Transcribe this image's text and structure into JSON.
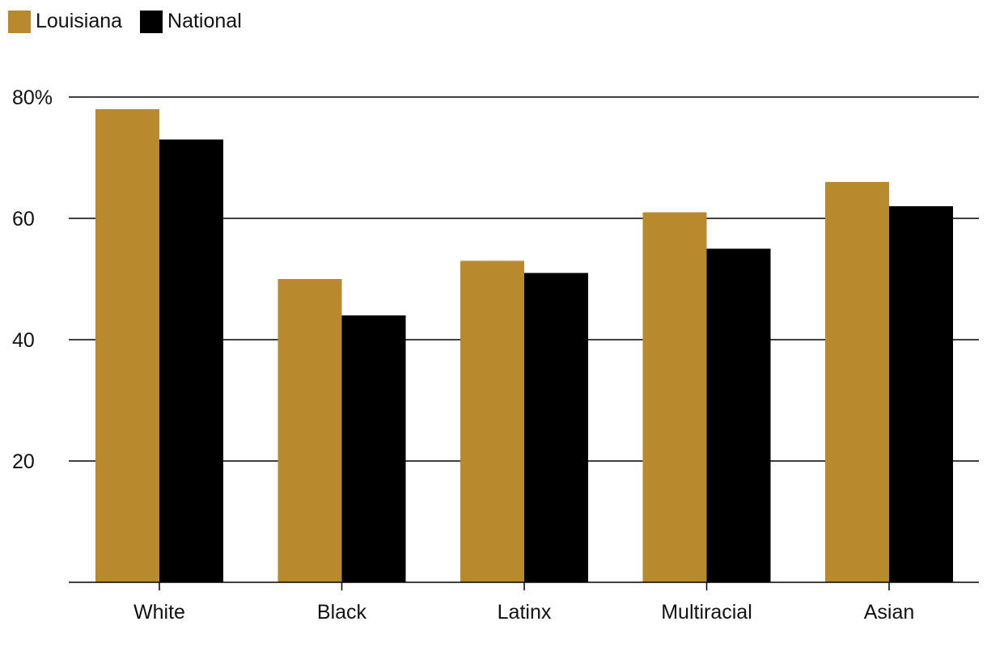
{
  "chart_data": {
    "type": "bar",
    "categories": [
      "White",
      "Black",
      "Latinx",
      "Multiracial",
      "Asian"
    ],
    "series": [
      {
        "name": "Louisiana",
        "color": "#b8892d",
        "values": [
          78,
          50,
          53,
          61,
          66
        ]
      },
      {
        "name": "National",
        "color": "#000000",
        "values": [
          73,
          44,
          51,
          55,
          62
        ]
      }
    ],
    "ylim": [
      0,
      80
    ],
    "yticks": [
      20,
      40,
      60,
      80
    ],
    "ytick_labels": [
      "20",
      "40",
      "60",
      "80%"
    ],
    "grid": true,
    "legend_position": "top-left",
    "title": "",
    "xlabel": "",
    "ylabel": ""
  }
}
